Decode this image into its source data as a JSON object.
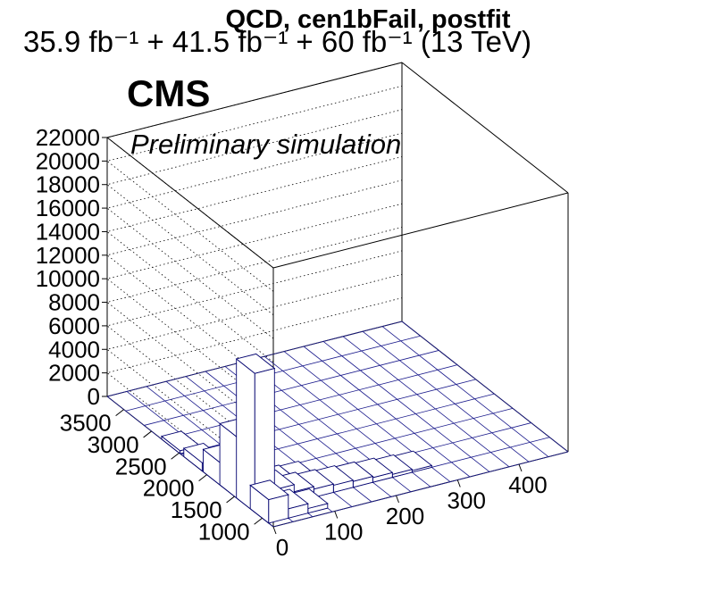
{
  "chart_data": {
    "type": "lego3d",
    "title": "QCD, cen1bFail, postfit",
    "lumi_label": "35.9 fb⁻¹ + 41.5 fb⁻¹ + 60 fb⁻¹ (13 TeV)",
    "experiment_label": "CMS",
    "status_label": "Preliminary simulation",
    "x_ticks": [
      "0",
      "100",
      "200",
      "300",
      "400"
    ],
    "y_ticks": [
      "1000",
      "1500",
      "2000",
      "2500",
      "3000",
      "3500"
    ],
    "z_ticks": [
      "0",
      "2000",
      "4000",
      "6000",
      "8000",
      "10000",
      "12000",
      "14000",
      "16000",
      "18000",
      "20000",
      "22000"
    ],
    "xlim": [
      0,
      480
    ],
    "ylim": [
      800,
      3800
    ],
    "zlim": [
      0,
      22000
    ],
    "bars": [
      {
        "x": 16,
        "y": 1300,
        "z": 11800
      },
      {
        "x": 16,
        "y": 1600,
        "z": 5200
      },
      {
        "x": 16,
        "y": 1900,
        "z": 1900
      },
      {
        "x": 16,
        "y": 2250,
        "z": 700
      },
      {
        "x": 16,
        "y": 2650,
        "z": 250
      },
      {
        "x": 16,
        "y": 1050,
        "z": 2000
      },
      {
        "x": 48,
        "y": 1050,
        "z": 800
      },
      {
        "x": 80,
        "y": 1050,
        "z": 400
      },
      {
        "x": 48,
        "y": 1300,
        "z": 1500
      },
      {
        "x": 80,
        "y": 1300,
        "z": 900
      },
      {
        "x": 112,
        "y": 1300,
        "z": 700
      },
      {
        "x": 144,
        "y": 1300,
        "z": 600
      },
      {
        "x": 176,
        "y": 1300,
        "z": 500
      },
      {
        "x": 208,
        "y": 1300,
        "z": 400
      },
      {
        "x": 240,
        "y": 1300,
        "z": 250
      },
      {
        "x": 272,
        "y": 1300,
        "z": 150
      },
      {
        "x": 48,
        "y": 1600,
        "z": 600
      },
      {
        "x": 80,
        "y": 1600,
        "z": 400
      },
      {
        "x": 112,
        "y": 1600,
        "z": 300
      }
    ]
  }
}
